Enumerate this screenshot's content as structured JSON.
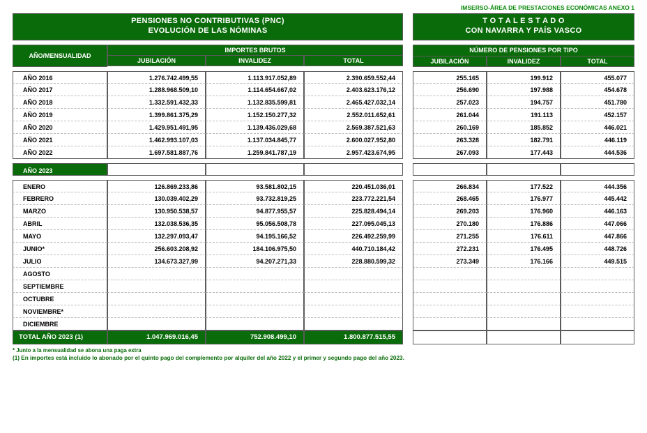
{
  "header": {
    "topline": "IMSERSO-ÁREA DE PRESTACIONES ECONÓMICAS    ANEXO 1"
  },
  "left": {
    "banner_l1": "PENSIONES NO CONTRIBUTIVAS (PNC)",
    "banner_l2": "EVOLUCIÓN DE LAS NÓMINAS",
    "rowhead": "AÑO/MENSUALIDAD",
    "group": "IMPORTES BRUTOS",
    "cols": {
      "c1": "JUBILACIÓN",
      "c2": "INVALIDEZ",
      "c3": "TOTAL"
    },
    "years": [
      {
        "label": "AÑO 2016",
        "c1": "1.276.742.499,55",
        "c2": "1.113.917.052,89",
        "c3": "2.390.659.552,44"
      },
      {
        "label": "AÑO 2017",
        "c1": "1.288.968.509,10",
        "c2": "1.114.654.667,02",
        "c3": "2.403.623.176,12"
      },
      {
        "label": "AÑO 2018",
        "c1": "1.332.591.432,33",
        "c2": "1.132.835.599,81",
        "c3": "2.465.427.032,14"
      },
      {
        "label": "AÑO 2019",
        "c1": "1.399.861.375,29",
        "c2": "1.152.150.277,32",
        "c3": "2.552.011.652,61"
      },
      {
        "label": "AÑO 2020",
        "c1": "1.429.951.491,95",
        "c2": "1.139.436.029,68",
        "c3": "2.569.387.521,63"
      },
      {
        "label": "AÑO 2021",
        "c1": "1.462.993.107,03",
        "c2": "1.137.034.845,77",
        "c3": "2.600.027.952,80"
      },
      {
        "label": "AÑO 2022",
        "c1": "1.697.581.887,76",
        "c2": "1.259.841.787,19",
        "c3": "2.957.423.674,95"
      }
    ],
    "year2023_label": "AÑO 2023",
    "months": [
      {
        "label": "ENERO",
        "c1": "126.869.233,86",
        "c2": "93.581.802,15",
        "c3": "220.451.036,01"
      },
      {
        "label": "FEBRERO",
        "c1": "130.039.402,29",
        "c2": "93.732.819,25",
        "c3": "223.772.221,54"
      },
      {
        "label": "MARZO",
        "c1": "130.950.538,57",
        "c2": "94.877.955,57",
        "c3": "225.828.494,14"
      },
      {
        "label": "ABRIL",
        "c1": "132.038.536,35",
        "c2": "95.056.508,78",
        "c3": "227.095.045,13"
      },
      {
        "label": "MAYO",
        "c1": "132.297.093,47",
        "c2": "94.195.166,52",
        "c3": "226.492.259,99"
      },
      {
        "label": "JUNIO*",
        "c1": "256.603.208,92",
        "c2": "184.106.975,50",
        "c3": "440.710.184,42"
      },
      {
        "label": "JULIO",
        "c1": "134.673.327,99",
        "c2": "94.207.271,33",
        "c3": "228.880.599,32"
      },
      {
        "label": "AGOSTO",
        "c1": "",
        "c2": "",
        "c3": ""
      },
      {
        "label": "SEPTIEMBRE",
        "c1": "",
        "c2": "",
        "c3": ""
      },
      {
        "label": "OCTUBRE",
        "c1": "",
        "c2": "",
        "c3": ""
      },
      {
        "label": "NOVIEMBRE*",
        "c1": "",
        "c2": "",
        "c3": ""
      },
      {
        "label": "DICIEMBRE",
        "c1": "",
        "c2": "",
        "c3": ""
      }
    ],
    "total": {
      "label": "TOTAL AÑO 2023 (1)",
      "c1": "1.047.969.016,45",
      "c2": "752.908.499,10",
      "c3": "1.800.877.515,55"
    }
  },
  "right": {
    "banner_l1": "T O T A L   E S T A D O",
    "banner_l2": "CON NAVARRA Y PAÍS VASCO",
    "group": "NÚMERO DE PENSIONES POR TIPO",
    "cols": {
      "c1": "JUBILACIÓN",
      "c2": "INVALIDEZ",
      "c3": "TOTAL"
    },
    "years": [
      {
        "c1": "255.165",
        "c2": "199.912",
        "c3": "455.077"
      },
      {
        "c1": "256.690",
        "c2": "197.988",
        "c3": "454.678"
      },
      {
        "c1": "257.023",
        "c2": "194.757",
        "c3": "451.780"
      },
      {
        "c1": "261.044",
        "c2": "191.113",
        "c3": "452.157"
      },
      {
        "c1": "260.169",
        "c2": "185.852",
        "c3": "446.021"
      },
      {
        "c1": "263.328",
        "c2": "182.791",
        "c3": "446.119"
      },
      {
        "c1": "267.093",
        "c2": "177.443",
        "c3": "444.536"
      }
    ],
    "months": [
      {
        "c1": "266.834",
        "c2": "177.522",
        "c3": "444.356"
      },
      {
        "c1": "268.465",
        "c2": "176.977",
        "c3": "445.442"
      },
      {
        "c1": "269.203",
        "c2": "176.960",
        "c3": "446.163"
      },
      {
        "c1": "270.180",
        "c2": "176.886",
        "c3": "447.066"
      },
      {
        "c1": "271.255",
        "c2": "176.611",
        "c3": "447.866"
      },
      {
        "c1": "272.231",
        "c2": "176.495",
        "c3": "448.726"
      },
      {
        "c1": "273.349",
        "c2": "176.166",
        "c3": "449.515"
      },
      {
        "c1": "",
        "c2": "",
        "c3": ""
      },
      {
        "c1": "",
        "c2": "",
        "c3": ""
      },
      {
        "c1": "",
        "c2": "",
        "c3": ""
      },
      {
        "c1": "",
        "c2": "",
        "c3": ""
      },
      {
        "c1": "",
        "c2": "",
        "c3": ""
      }
    ]
  },
  "footnotes": {
    "f1": "*  Junto a la mensualidad se abona una paga extra",
    "f2": "(1) En importes está incluido lo abonado por el quinto pago del complemento por alquiler del año 2022 y el primer y segundo pago del año 2023."
  },
  "style": {
    "green": "#0a6b0a",
    "light_green_text": "#0a8a0a",
    "border": "#5a5a5a",
    "dash": "#bcbcbc",
    "bg": "#ffffff"
  }
}
